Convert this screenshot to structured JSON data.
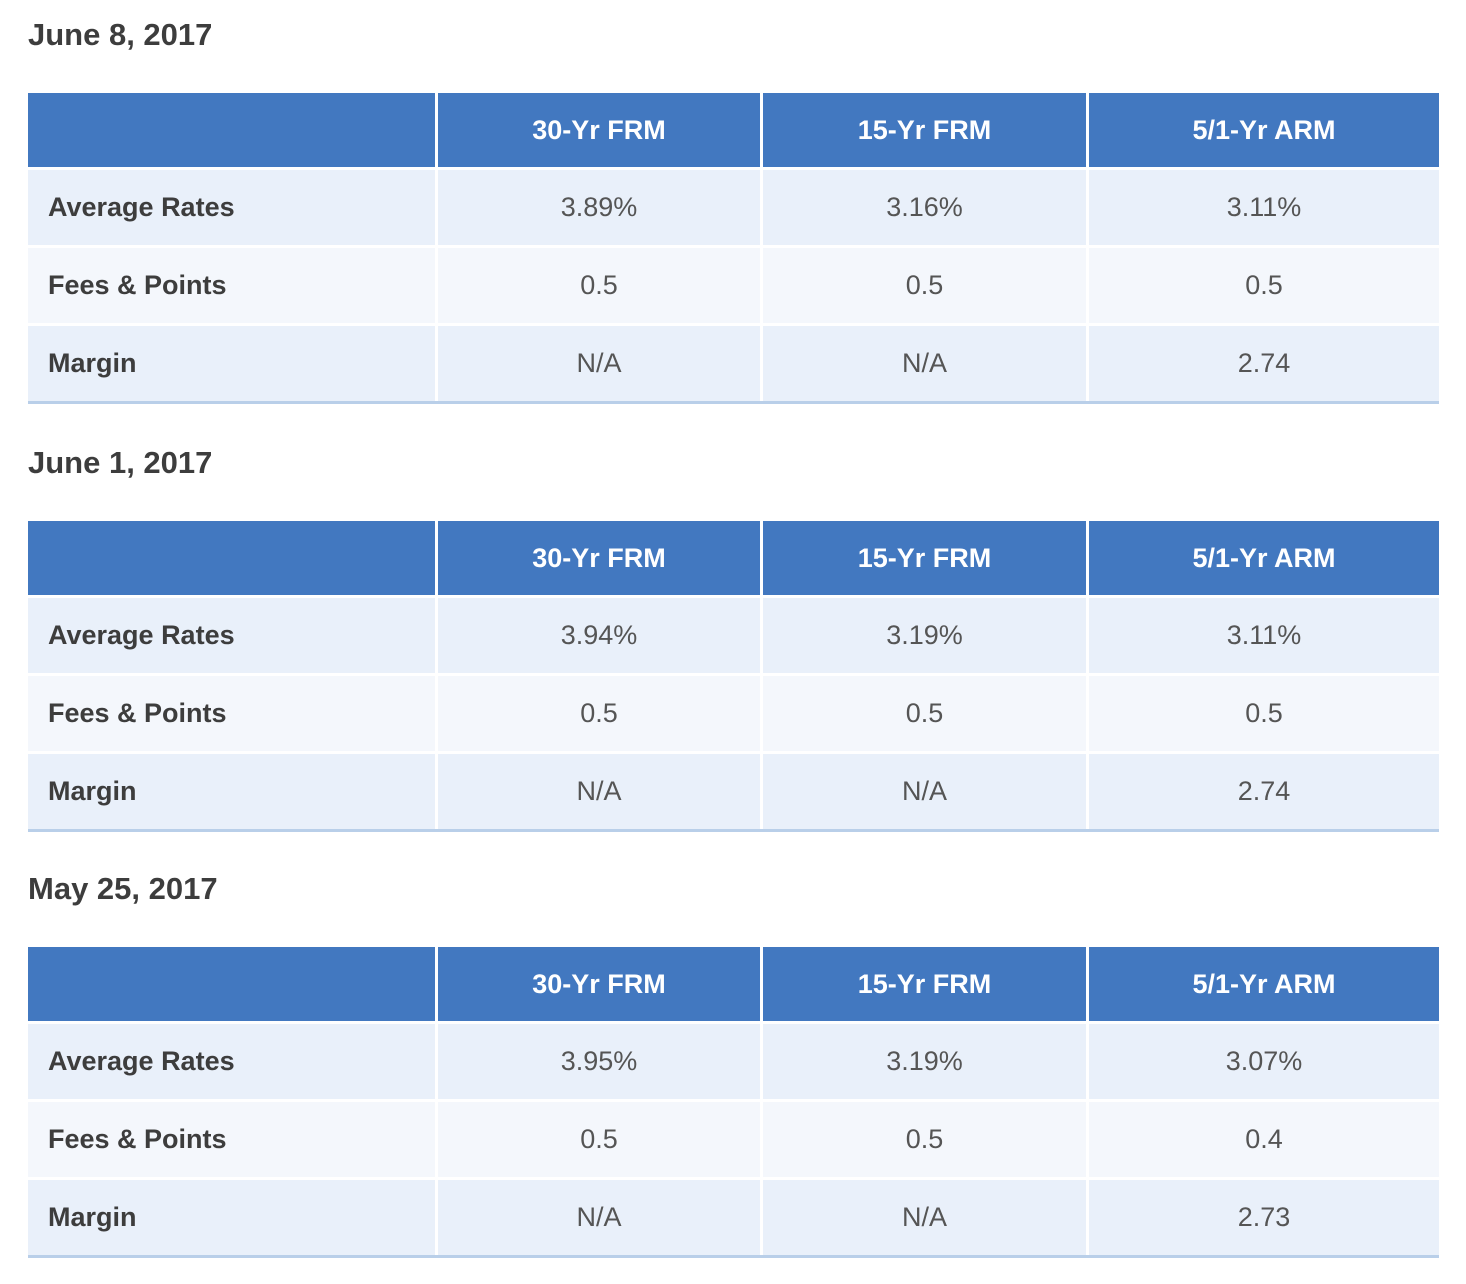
{
  "columns": [
    "",
    "30-Yr FRM",
    "15-Yr FRM",
    "5/1-Yr ARM"
  ],
  "sections": [
    {
      "date": "June 8, 2017",
      "rows": [
        {
          "label": "Average Rates",
          "values": [
            "3.89%",
            "3.16%",
            "3.11%"
          ]
        },
        {
          "label": "Fees & Points",
          "values": [
            "0.5",
            "0.5",
            "0.5"
          ]
        },
        {
          "label": "Margin",
          "values": [
            "N/A",
            "N/A",
            "2.74"
          ]
        }
      ]
    },
    {
      "date": "June 1, 2017",
      "rows": [
        {
          "label": "Average Rates",
          "values": [
            "3.94%",
            "3.19%",
            "3.11%"
          ]
        },
        {
          "label": "Fees & Points",
          "values": [
            "0.5",
            "0.5",
            "0.5"
          ]
        },
        {
          "label": "Margin",
          "values": [
            "N/A",
            "N/A",
            "2.74"
          ]
        }
      ]
    },
    {
      "date": "May 25, 2017",
      "rows": [
        {
          "label": "Average Rates",
          "values": [
            "3.95%",
            "3.19%",
            "3.07%"
          ]
        },
        {
          "label": "Fees & Points",
          "values": [
            "0.5",
            "0.5",
            "0.4"
          ]
        },
        {
          "label": "Margin",
          "values": [
            "N/A",
            "N/A",
            "2.73"
          ]
        }
      ]
    }
  ]
}
